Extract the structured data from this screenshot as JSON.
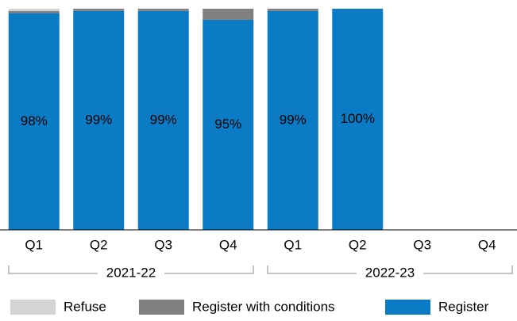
{
  "chart_data": {
    "type": "stacked_bar",
    "categories": [
      "Q1",
      "Q2",
      "Q3",
      "Q4",
      "Q1",
      "Q2",
      "Q3",
      "Q4"
    ],
    "groups": [
      "2021-22",
      "2022-23"
    ],
    "ylim": [
      0,
      100
    ],
    "series": [
      {
        "name": "Refuse",
        "color": "#d4d4d4",
        "values": [
          1,
          0,
          0,
          0,
          0,
          0,
          null,
          null
        ]
      },
      {
        "name": "Register with conditions",
        "color": "#808080",
        "values": [
          1,
          1,
          1,
          5,
          1,
          0,
          null,
          null
        ]
      },
      {
        "name": "Register",
        "color": "#0a7bc4",
        "values": [
          98,
          99,
          99,
          95,
          99,
          100,
          null,
          null
        ],
        "value_labels": [
          "98%",
          "99%",
          "99%",
          "95%",
          "99%",
          "100%",
          null,
          null
        ]
      }
    ]
  }
}
